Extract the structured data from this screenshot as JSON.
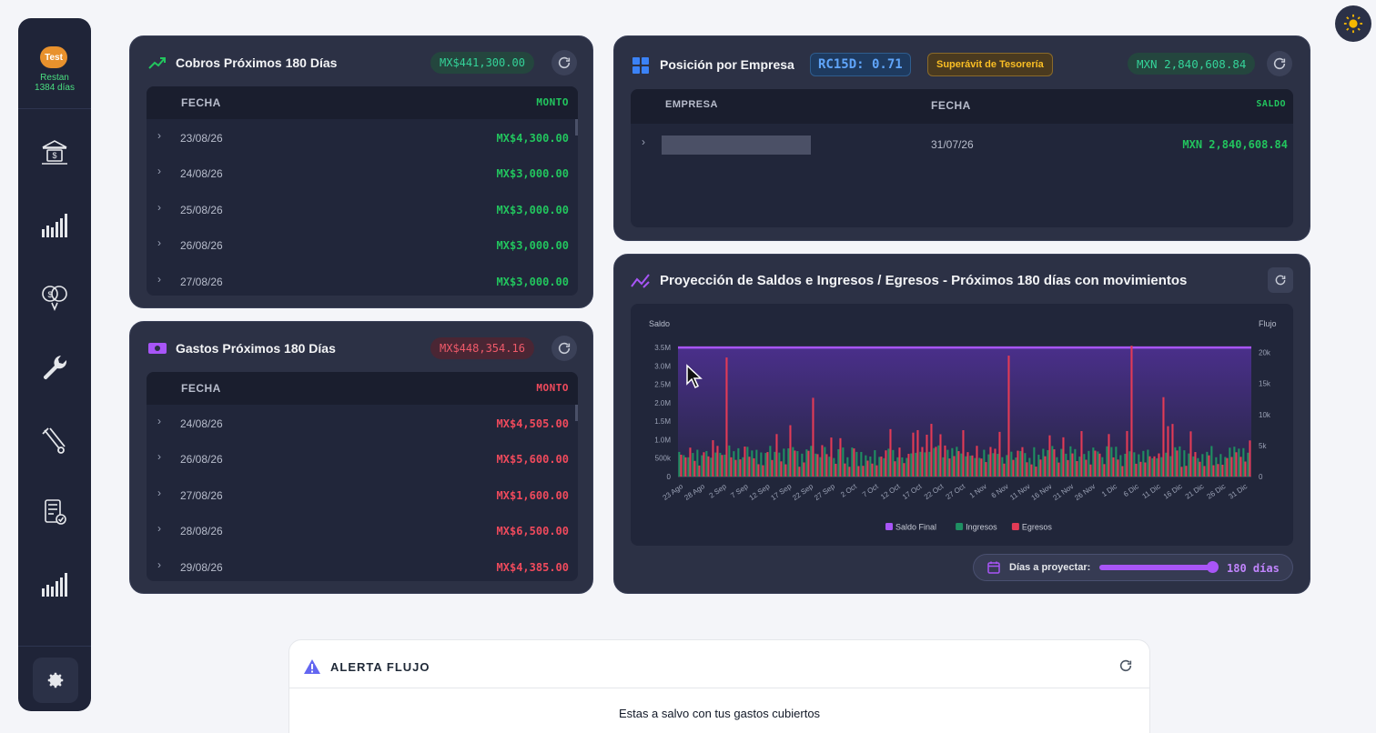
{
  "sidebar": {
    "badge": "Test",
    "restan_line1": "Restan",
    "restan_line2": "1384 días",
    "icons": [
      "bank-icon",
      "bar-chart-icon",
      "money-globe-icon",
      "wrench-icon",
      "tools-icon",
      "calculator-check-icon",
      "bar-chart-icon"
    ]
  },
  "cobros": {
    "title": "Cobros Próximos 180 Días",
    "total": "MX$441,300.00",
    "col_date": "FECHA",
    "col_amount": "MONTO",
    "rows": [
      {
        "date": "23/08/26",
        "amount": "MX$4,300.00"
      },
      {
        "date": "24/08/26",
        "amount": "MX$3,000.00"
      },
      {
        "date": "25/08/26",
        "amount": "MX$3,000.00"
      },
      {
        "date": "26/08/26",
        "amount": "MX$3,000.00"
      },
      {
        "date": "27/08/26",
        "amount": "MX$3,000.00"
      }
    ]
  },
  "gastos": {
    "title": "Gastos Próximos 180 Días",
    "total": "MX$448,354.16",
    "col_date": "FECHA",
    "col_amount": "MONTO",
    "rows": [
      {
        "date": "24/08/26",
        "amount": "MX$4,505.00"
      },
      {
        "date": "26/08/26",
        "amount": "MX$5,600.00"
      },
      {
        "date": "27/08/26",
        "amount": "MX$1,600.00"
      },
      {
        "date": "28/08/26",
        "amount": "MX$6,500.00"
      },
      {
        "date": "29/08/26",
        "amount": "MX$4,385.00"
      }
    ]
  },
  "posicion": {
    "title": "Posición por Empresa",
    "rc15d": "RC15D: 0.71",
    "status": "Superávit de Tesorería",
    "total": "MXN 2,840,608.84",
    "col_company": "EMPRESA",
    "col_date": "FECHA",
    "col_balance": "SALDO",
    "rows": [
      {
        "company": "",
        "date": "31/07/26",
        "balance": "MXN 2,840,608.84"
      }
    ]
  },
  "proyeccion": {
    "title": "Proyección de Saldos e Ingresos / Egresos - Próximos 180 días con movimientos",
    "dias_label": "Días a proyectar:",
    "dias_value": "180 días",
    "slider_fraction": 0.97
  },
  "chart_data": {
    "type": "bar",
    "left_axis_title": "Saldo",
    "right_axis_title": "Flujo",
    "left_ticks": [
      "0",
      "500k",
      "1.0M",
      "1.5M",
      "2.0M",
      "2.5M",
      "3.0M",
      "3.5M"
    ],
    "right_ticks": [
      "0",
      "5k",
      "10k",
      "15k",
      "20k"
    ],
    "ylim_left": [
      0,
      3700000
    ],
    "ylim_right": [
      0,
      22000
    ],
    "x_labels": [
      "23 Ago",
      "28 Ago",
      "2 Sep",
      "7 Sep",
      "12 Sep",
      "17 Sep",
      "22 Sep",
      "27 Sep",
      "2 Oct",
      "7 Oct",
      "12 Oct",
      "17 Oct",
      "22 Oct",
      "27 Oct",
      "1 Nov",
      "6 Nov",
      "11 Nov",
      "16 Nov",
      "21 Nov",
      "26 Nov",
      "1 Dic",
      "6 Dic",
      "11 Dic",
      "16 Dic",
      "21 Dic",
      "26 Dic",
      "31 Dic"
    ],
    "series": [
      {
        "name": "Saldo Final",
        "color": "#a855f7",
        "kind": "line",
        "level": 3500000
      },
      {
        "name": "Ingresos",
        "color": "#1f8f62",
        "kind": "bar",
        "typical": 4200
      },
      {
        "name": "Egresos",
        "color": "#e23b56",
        "kind": "bar",
        "peaks": [
          19200,
          12700,
          8500,
          19500,
          21100,
          12800
        ]
      }
    ],
    "legend": "bottom"
  },
  "alerta": {
    "title": "ALERTA FLUJO",
    "message": "Estas a salvo con tus gastos cubiertos"
  }
}
